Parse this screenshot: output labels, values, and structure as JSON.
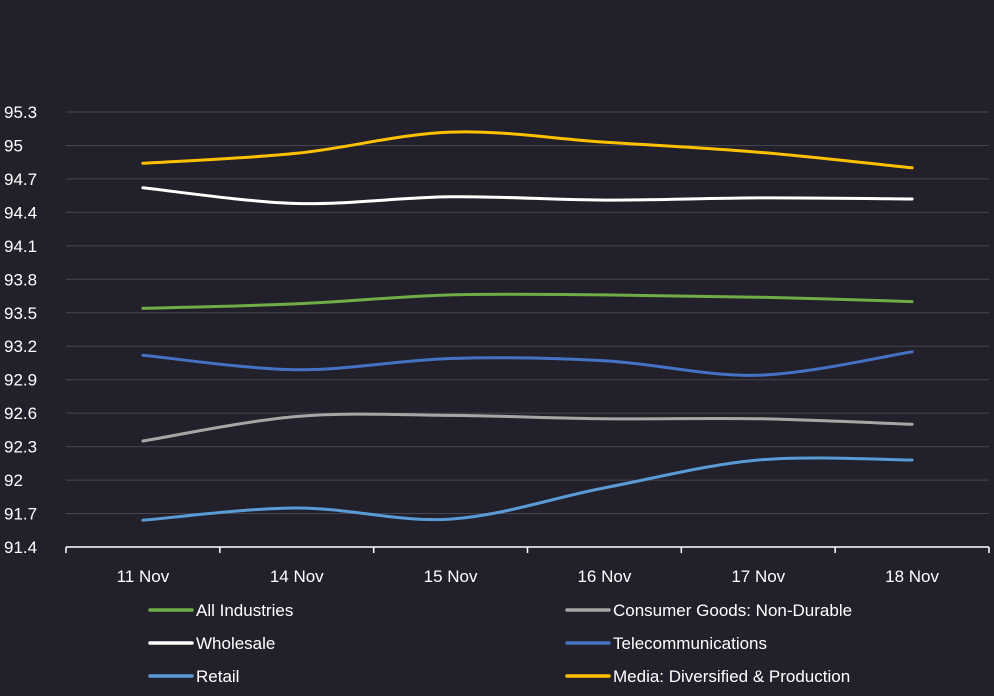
{
  "chart_data": {
    "type": "line",
    "title": "",
    "xlabel": "",
    "ylabel": "",
    "categories": [
      "11 Nov",
      "14 Nov",
      "15 Nov",
      "16 Nov",
      "17 Nov",
      "18 Nov"
    ],
    "ylim": [
      91.4,
      95.3
    ],
    "yticks": [
      "91.4",
      "91.7",
      "92",
      "92.3",
      "92.6",
      "92.9",
      "93.2",
      "93.5",
      "93.8",
      "94.1",
      "94.4",
      "94.7",
      "95",
      "95.3"
    ],
    "grid": true,
    "legend_position": "bottom",
    "series": [
      {
        "name": "All Industries",
        "color": "#70ad47",
        "values": [
          93.54,
          93.58,
          93.66,
          93.66,
          93.64,
          93.6
        ]
      },
      {
        "name": "Consumer Goods: Non-Durable",
        "color": "#a6a6a6",
        "values": [
          92.35,
          92.57,
          92.58,
          92.55,
          92.55,
          92.5
        ]
      },
      {
        "name": "Wholesale",
        "color": "#ffffff",
        "values": [
          94.62,
          94.48,
          94.54,
          94.51,
          94.53,
          94.52
        ]
      },
      {
        "name": "Telecommunications",
        "color": "#4472c4",
        "values": [
          93.12,
          92.99,
          93.09,
          93.07,
          92.94,
          93.15
        ]
      },
      {
        "name": "Retail",
        "color": "#5b9bd5",
        "values": [
          91.64,
          91.75,
          91.65,
          91.93,
          92.18,
          92.18
        ]
      },
      {
        "name": "Media: Diversified & Production",
        "color": "#ffc000",
        "values": [
          94.84,
          94.93,
          95.12,
          95.03,
          94.94,
          94.8
        ]
      }
    ]
  }
}
